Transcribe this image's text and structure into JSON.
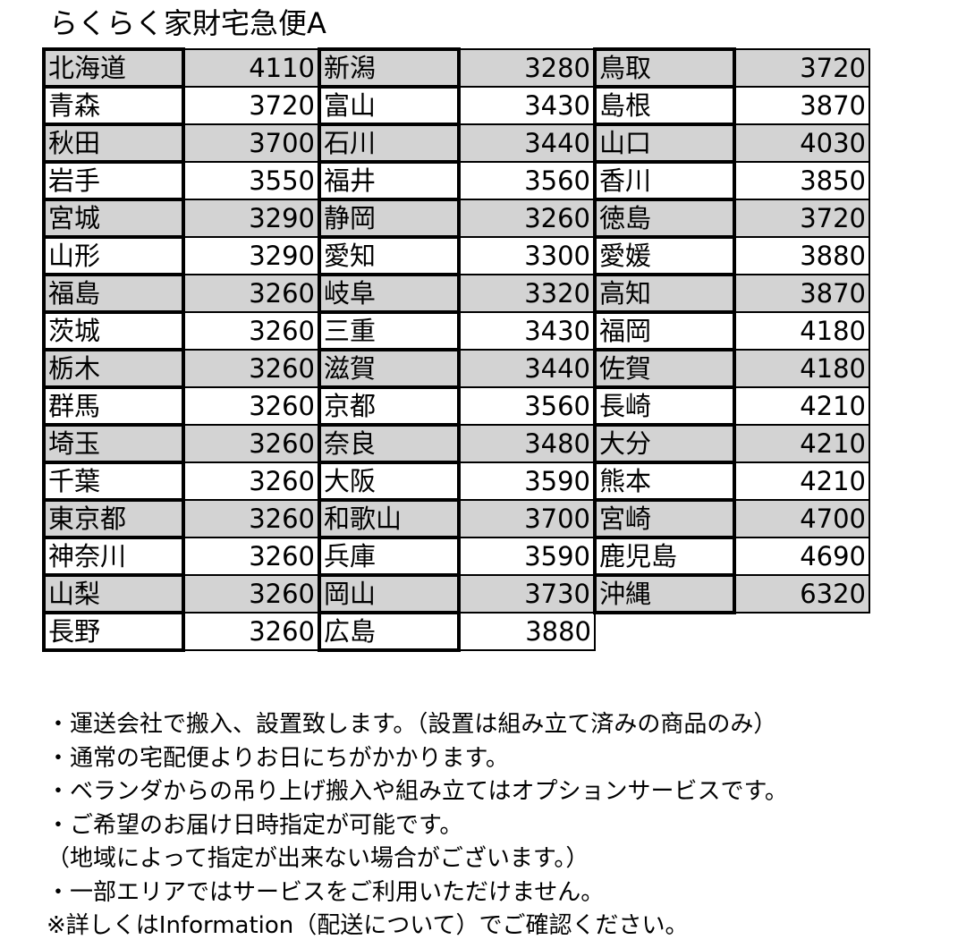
{
  "title": "らくらく家財宅急便A",
  "rows": [
    [
      [
        "北海道",
        "4110"
      ],
      [
        "新潟",
        "3280"
      ],
      [
        "鳥取",
        "3720"
      ]
    ],
    [
      [
        "青森",
        "3720"
      ],
      [
        "富山",
        "3430"
      ],
      [
        "島根",
        "3870"
      ]
    ],
    [
      [
        "秋田",
        "3700"
      ],
      [
        "石川",
        "3440"
      ],
      [
        "山口",
        "4030"
      ]
    ],
    [
      [
        "岩手",
        "3550"
      ],
      [
        "福井",
        "3560"
      ],
      [
        "香川",
        "3850"
      ]
    ],
    [
      [
        "宮城",
        "3290"
      ],
      [
        "静岡",
        "3260"
      ],
      [
        "徳島",
        "3720"
      ]
    ],
    [
      [
        "山形",
        "3290"
      ],
      [
        "愛知",
        "3300"
      ],
      [
        "愛媛",
        "3880"
      ]
    ],
    [
      [
        "福島",
        "3260"
      ],
      [
        "岐阜",
        "3320"
      ],
      [
        "高知",
        "3870"
      ]
    ],
    [
      [
        "茨城",
        "3260"
      ],
      [
        "三重",
        "3430"
      ],
      [
        "福岡",
        "4180"
      ]
    ],
    [
      [
        "栃木",
        "3260"
      ],
      [
        "滋賀",
        "3440"
      ],
      [
        "佐賀",
        "4180"
      ]
    ],
    [
      [
        "群馬",
        "3260"
      ],
      [
        "京都",
        "3560"
      ],
      [
        "長崎",
        "4210"
      ]
    ],
    [
      [
        "埼玉",
        "3260"
      ],
      [
        "奈良",
        "3480"
      ],
      [
        "大分",
        "4210"
      ]
    ],
    [
      [
        "千葉",
        "3260"
      ],
      [
        "大阪",
        "3590"
      ],
      [
        "熊本",
        "4210"
      ]
    ],
    [
      [
        "東京都",
        "3260"
      ],
      [
        "和歌山",
        "3700"
      ],
      [
        "宮崎",
        "4700"
      ]
    ],
    [
      [
        "神奈川",
        "3260"
      ],
      [
        "兵庫",
        "3590"
      ],
      [
        "鹿児島",
        "4690"
      ]
    ],
    [
      [
        "山梨",
        "3260"
      ],
      [
        "岡山",
        "3730"
      ],
      [
        "沖縄",
        "6320"
      ]
    ],
    [
      [
        "長野",
        "3260"
      ],
      [
        "広島",
        "3880"
      ]
    ]
  ],
  "notes": [
    "・運送会社で搬入、設置致します。（設置は組み立て済みの商品のみ）",
    "・通常の宅配便よりお日にちがかかります。",
    "・ベランダからの吊り上げ搬入や組み立てはオプションサービスです。",
    "・ご希望のお届け日時指定が可能です。",
    "（地域によって指定が出来ない場合がございます。）",
    "・一部エリアではサービスをご利用いただけません。",
    "※詳しくはInformation（配送について）でご確認ください。"
  ],
  "colors": {
    "row_alt": "#d3d3d3"
  }
}
